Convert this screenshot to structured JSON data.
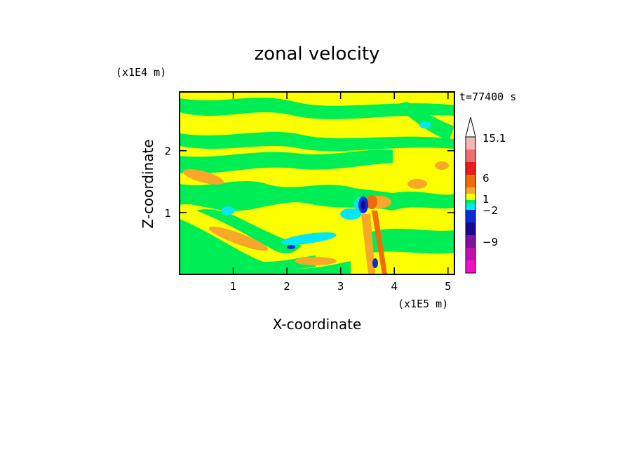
{
  "chart_data": {
    "type": "heatmap",
    "title": "zonal velocity",
    "xlabel": "X-coordinate",
    "ylabel": "Z-coordinate",
    "x_scale_label": "(x1E5 m)",
    "y_scale_label": "(x1E4 m)",
    "time_label": "t=77400 s",
    "x_ticks": [
      "1",
      "2",
      "3",
      "4",
      "5"
    ],
    "y_ticks": [
      "1",
      "2"
    ],
    "xlim": [
      0,
      5.12
    ],
    "ylim": [
      0,
      2.95
    ],
    "colorbar": {
      "labels": [
        "15.1",
        "6",
        "1",
        "−2",
        "−9"
      ],
      "colors": [
        "#ffffff",
        "#f4b5b5",
        "#ee6d6d",
        "#e81c1c",
        "#f26a0a",
        "#f8a828",
        "#fcff00",
        "#00ee55",
        "#00e8f4",
        "#0a2cd4",
        "#180890",
        "#8010a0",
        "#c60fb0",
        "#f010c8"
      ]
    }
  }
}
